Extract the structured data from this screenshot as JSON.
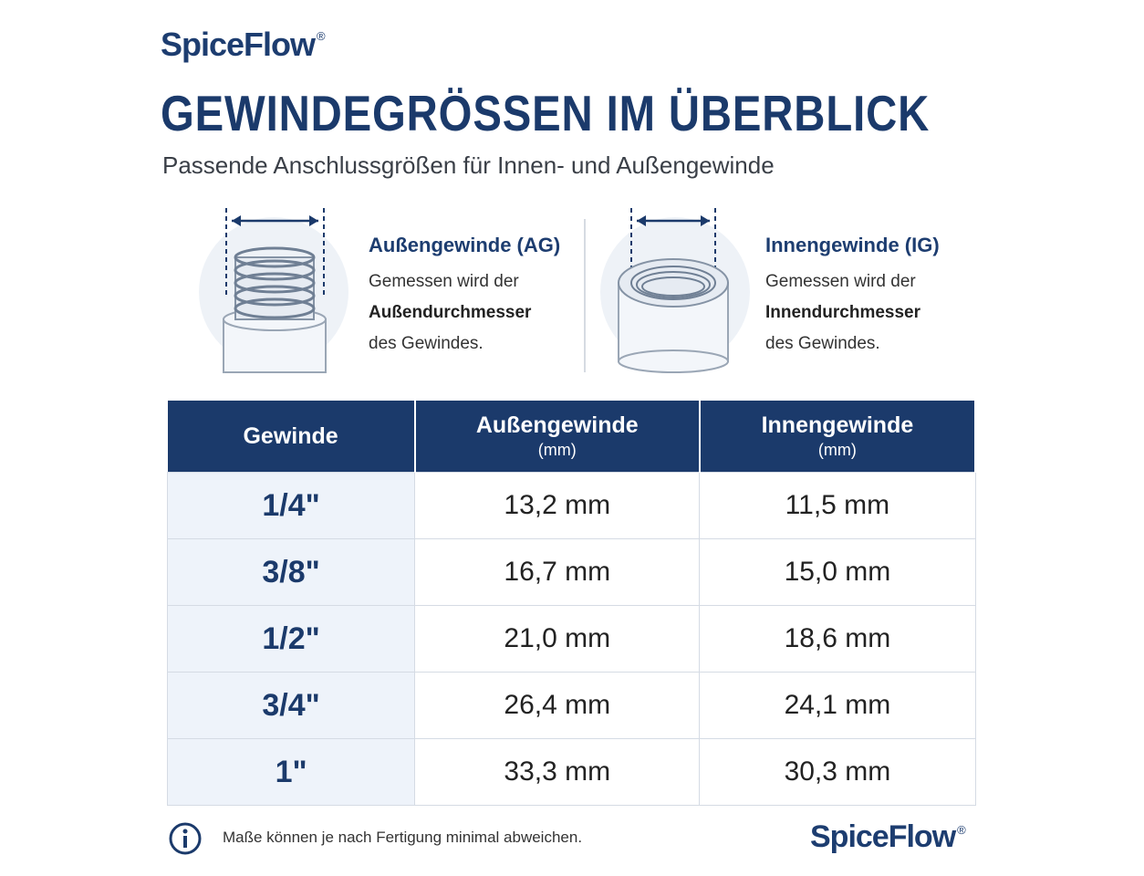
{
  "header": {
    "brand": "SpiceFlow",
    "brand_mark": "®",
    "title": "GEWINDEGRÖSSEN IM ÜBERBLICK",
    "subtitle": "Passende Anschlussgrößen für Innen- und Außengewinde"
  },
  "info": [
    {
      "title": "Außengewinde (AG)",
      "text_before": "Gemessen wird der",
      "text_bold": "Außendurchmesser",
      "text_after": "des Gewindes."
    },
    {
      "title": "Innengewinde (IG)",
      "text_before": "Gemessen wird der",
      "text_bold": "Innendurchmesser",
      "text_after": "des Gewindes."
    }
  ],
  "table": {
    "headers": [
      {
        "label": "Gewinde"
      },
      {
        "label": "Außengewinde",
        "unit": "(mm)"
      },
      {
        "label": "Innengewinde",
        "unit": "(mm)"
      }
    ],
    "rows": [
      [
        "1/4\"",
        "13,2 mm",
        "11,5 mm"
      ],
      [
        "3/8\"",
        "16,7 mm",
        "15,0 mm"
      ],
      [
        "1/2\"",
        "21,0 mm",
        "18,6 mm"
      ],
      [
        "3/4\"",
        "26,4 mm",
        "24,1 mm"
      ],
      [
        "1\"",
        "33,3 mm",
        "30,3 mm"
      ]
    ]
  },
  "footer": {
    "note": "Maße können je nach Fertigung minimal abweichen.",
    "brand": "SpiceFlow",
    "brand_mark": "®"
  }
}
